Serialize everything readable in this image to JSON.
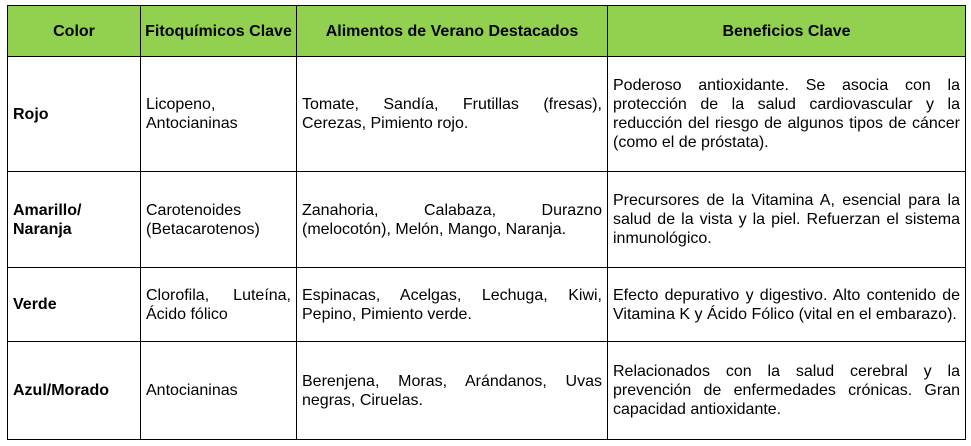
{
  "table": {
    "headers": [
      "Color",
      "Fitoquímicos Clave",
      "Alimentos de Verano Destacados",
      "Beneficios Clave"
    ],
    "rows": [
      [
        "Rojo",
        "Licopeno, Antocianinas",
        "Tomate, Sandía, Frutillas (fresas), Cerezas, Pimiento rojo.",
        "Poderoso antioxidante. Se asocia con la protección de la salud cardiovascular y la reducción del riesgo de algunos tipos de cáncer (como el de próstata)."
      ],
      [
        "Amarillo/ Naranja",
        "Carotenoides (Betacarotenos)",
        "Zanahoria, Calabaza, Durazno (melocotón), Melón, Mango, Naranja.",
        "Precursores de la Vitamina A, esencial para la salud de la vista y la piel. Refuerzan el sistema inmunológico."
      ],
      [
        "Verde",
        "Clorofila, Luteína, Ácido fólico",
        "Espinacas, Acelgas, Lechuga, Kiwi, Pepino, Pimiento verde.",
        "Efecto depurativo y digestivo. Alto contenido de Vitamina K y Ácido Fólico (vital en el embarazo)."
      ],
      [
        "Azul/Morado",
        "Antocianinas",
        "Berenjena, Moras, Arándanos, Uvas negras, Ciruelas.",
        "Relacionados con la salud cerebral y la prevención de enfermedades crónicas. Gran capacidad antioxidante."
      ]
    ]
  }
}
